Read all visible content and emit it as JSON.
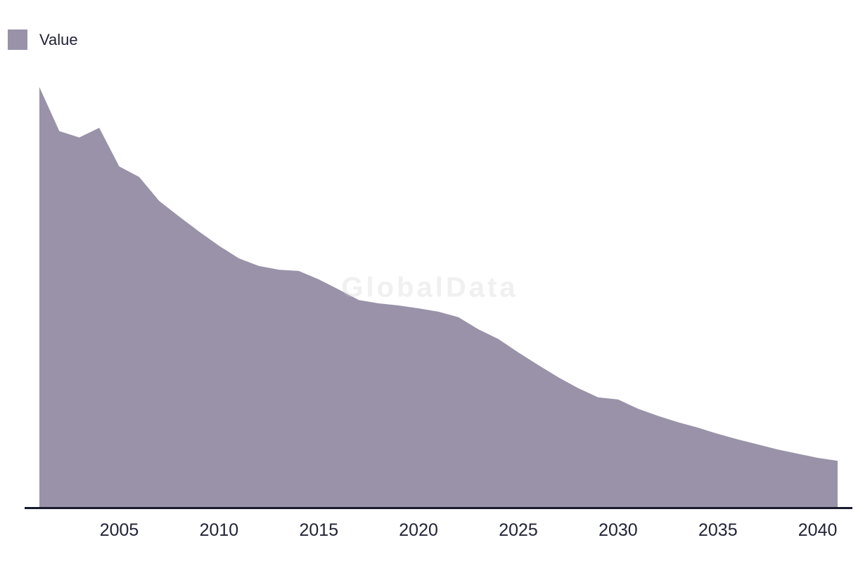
{
  "legend": {
    "label": "Value"
  },
  "watermark": "GlobalData",
  "colors": {
    "area_fill": "#9992a9",
    "axis_line": "#181a2e",
    "label_text": "#212337",
    "watermark_text": "rgba(206,206,206,0.30)",
    "background": "#ffffff"
  },
  "chart_data": {
    "type": "area",
    "title": "",
    "xlabel": "",
    "ylabel": "",
    "grid": false,
    "legend_position": "top-left",
    "x_range": [
      2001,
      2041
    ],
    "x_ticks": [
      "2005",
      "2010",
      "2015",
      "2020",
      "2025",
      "2030",
      "2035",
      "2040"
    ],
    "ylim": [
      0,
      105
    ],
    "y_axis_visible": false,
    "series": [
      {
        "name": "Value",
        "x": [
          2001,
          2002,
          2003,
          2004,
          2005,
          2006,
          2007,
          2008,
          2009,
          2010,
          2011,
          2012,
          2013,
          2014,
          2015,
          2016,
          2017,
          2018,
          2019,
          2020,
          2021,
          2022,
          2023,
          2024,
          2025,
          2026,
          2027,
          2028,
          2029,
          2030,
          2031,
          2032,
          2033,
          2034,
          2035,
          2036,
          2037,
          2038,
          2039,
          2040,
          2041
        ],
        "values": [
          100.0,
          89.5,
          88.0,
          90.3,
          81.1,
          78.6,
          72.9,
          69.2,
          65.6,
          62.2,
          59.2,
          57.4,
          56.5,
          56.2,
          54.2,
          51.8,
          49.3,
          48.5,
          48.0,
          47.3,
          46.5,
          45.2,
          42.3,
          40.0,
          36.8,
          33.8,
          30.9,
          28.3,
          26.1,
          25.6,
          23.4,
          21.7,
          20.2,
          18.9,
          17.4,
          16.1,
          14.9,
          13.7,
          12.7,
          11.7,
          11.0
        ]
      }
    ]
  }
}
